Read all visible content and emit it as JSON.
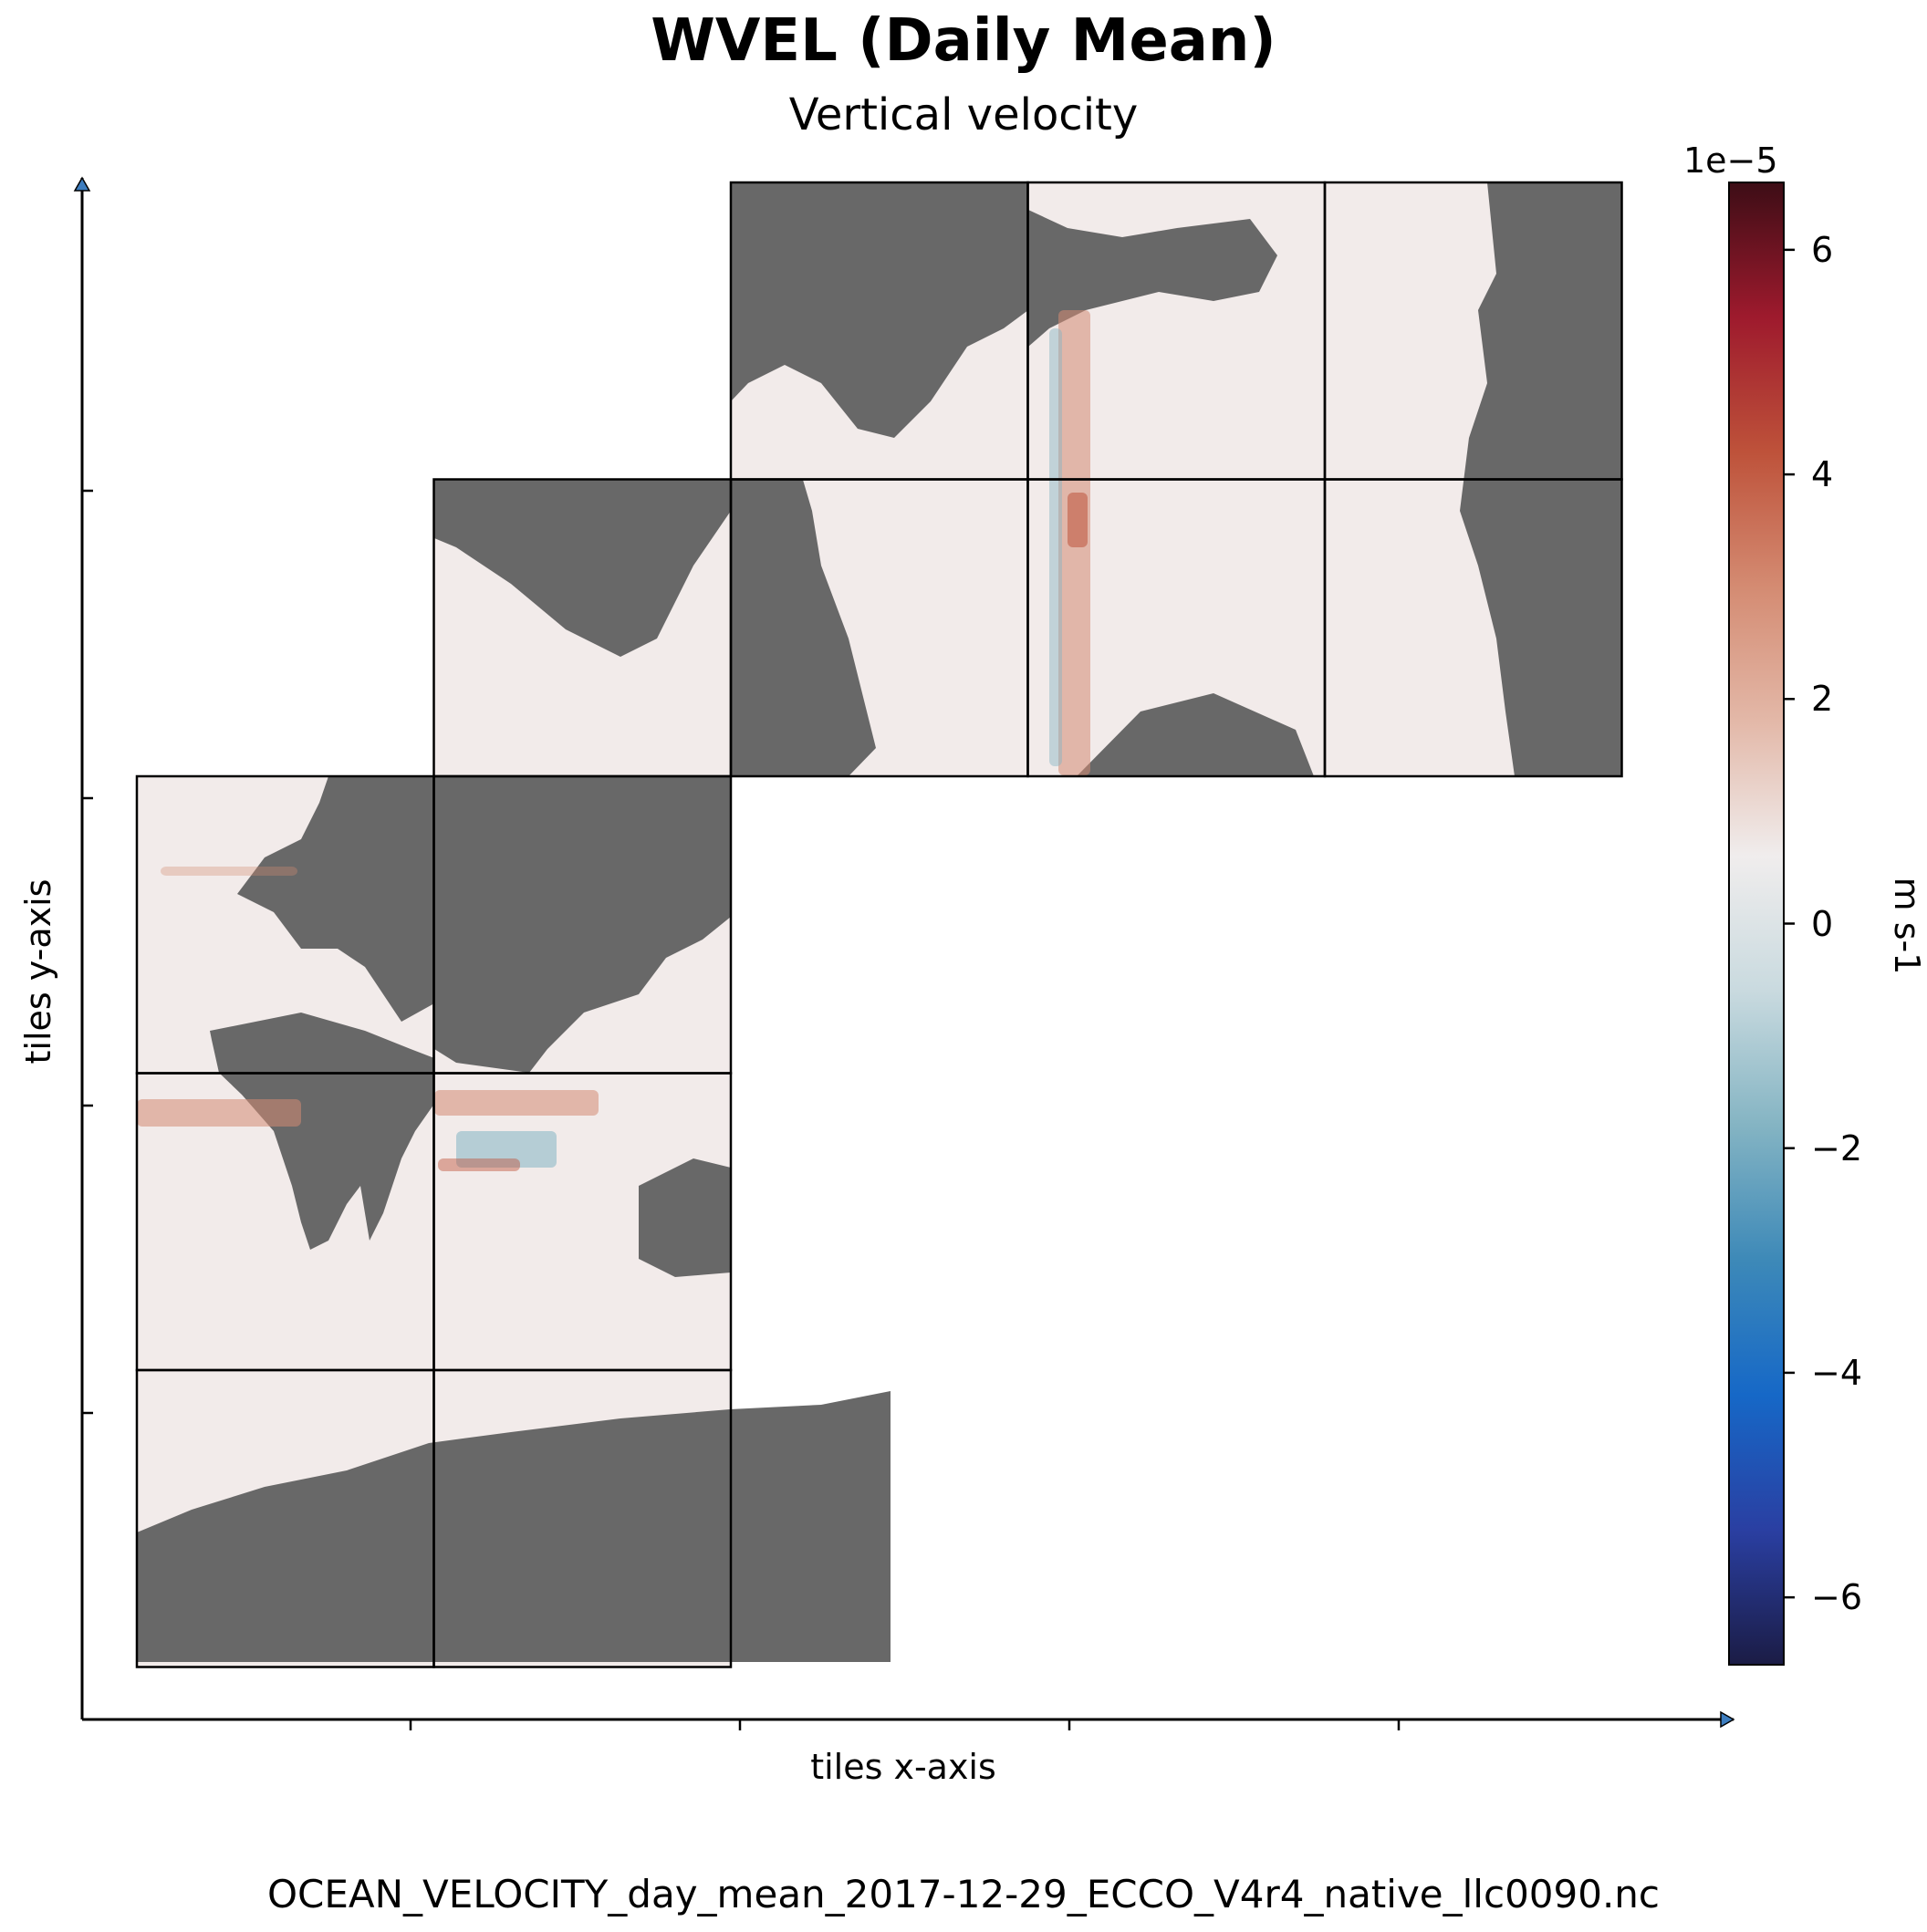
{
  "chart_data": {
    "type": "heatmap",
    "title": "WVEL (Daily Mean)",
    "subtitle": "Vertical velocity",
    "xlabel": "tiles x-axis",
    "ylabel": "tiles y-axis",
    "footer": "OCEAN_VELOCITY_day_mean_2017-12-29_ECCO_V4r4_native_llc0090.nc",
    "colorbar": {
      "label": "m s-1",
      "exponent_label": "1e−5",
      "range": [
        -6.6,
        6.6
      ],
      "ticks": [
        6,
        4,
        2,
        0,
        -2,
        -4,
        -6
      ],
      "tick_labels": [
        "6",
        "4",
        "2",
        "0",
        "−2",
        "−4",
        "−6"
      ],
      "colormap": "balance (diverging)",
      "colors": [
        "#1b1c45",
        "#2a3fa2",
        "#1668c7",
        "#3d89b8",
        "#84b4c3",
        "#c9dadf",
        "#f0eded",
        "#e3b8a8",
        "#d48b72",
        "#be523a",
        "#9e1a2d",
        "#3d0d16"
      ]
    },
    "land_color": "#686868",
    "tile_grid": "5 rows x 5 columns of panels, 13 tiles drawn, no tick labels",
    "tiles": [
      {
        "row": 0,
        "col": 2
      },
      {
        "row": 0,
        "col": 3
      },
      {
        "row": 0,
        "col": 4
      },
      {
        "row": 1,
        "col": 1
      },
      {
        "row": 1,
        "col": 2
      },
      {
        "row": 1,
        "col": 3
      },
      {
        "row": 1,
        "col": 4
      },
      {
        "row": 2,
        "col": 0
      },
      {
        "row": 2,
        "col": 1
      },
      {
        "row": 3,
        "col": 0
      },
      {
        "row": 3,
        "col": 1
      },
      {
        "row": 4,
        "col": 0
      },
      {
        "row": 4,
        "col": 1
      }
    ]
  }
}
